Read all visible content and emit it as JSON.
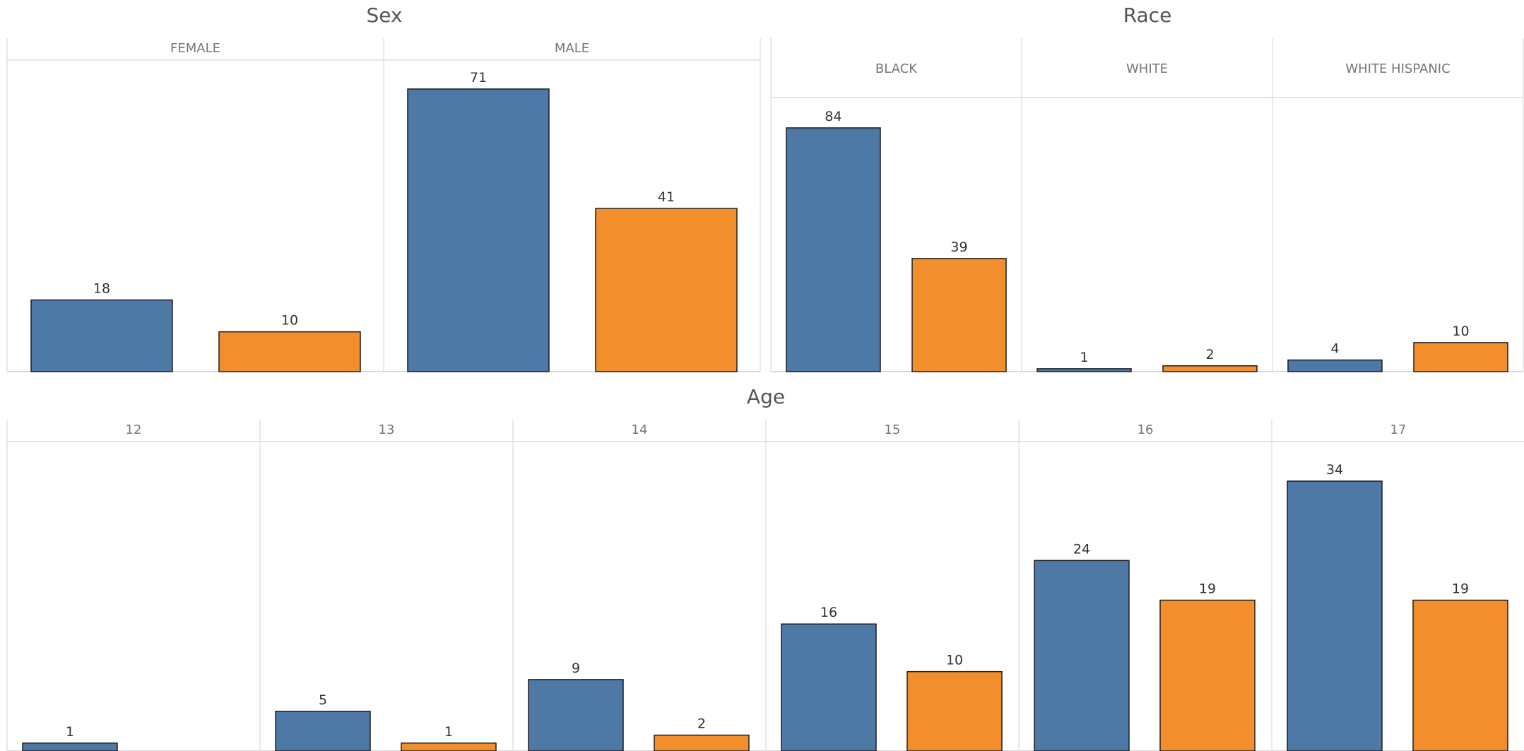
{
  "chart_data": [
    {
      "type": "bar",
      "title": "Sex",
      "categories": [
        "FEMALE",
        "MALE"
      ],
      "series_colors": [
        "#4e79a7",
        "#f28e2b"
      ],
      "series": [
        {
          "values": [
            18,
            71
          ]
        },
        {
          "values": [
            10,
            41
          ]
        }
      ],
      "ylim": [
        0,
        80
      ],
      "grid": false,
      "legend": "none"
    },
    {
      "type": "bar",
      "title": "Race",
      "categories": [
        "BLACK",
        "WHITE",
        "WHITE HISPANIC"
      ],
      "series_colors": [
        "#4e79a7",
        "#f28e2b"
      ],
      "series": [
        {
          "values": [
            84,
            1,
            4
          ]
        },
        {
          "values": [
            39,
            2,
            10
          ]
        }
      ],
      "ylim": [
        0,
        88
      ],
      "grid": false,
      "legend": "none"
    },
    {
      "type": "bar",
      "title": "Age",
      "categories": [
        "12",
        "13",
        "14",
        "15",
        "16",
        "17"
      ],
      "series_colors": [
        "#4e79a7",
        "#f28e2b"
      ],
      "series": [
        {
          "values": [
            1,
            5,
            9,
            16,
            24,
            34
          ]
        },
        {
          "values": [
            null,
            1,
            2,
            10,
            19,
            19
          ]
        }
      ],
      "ylim": [
        0,
        37.5
      ],
      "grid": false,
      "legend": "none"
    }
  ]
}
